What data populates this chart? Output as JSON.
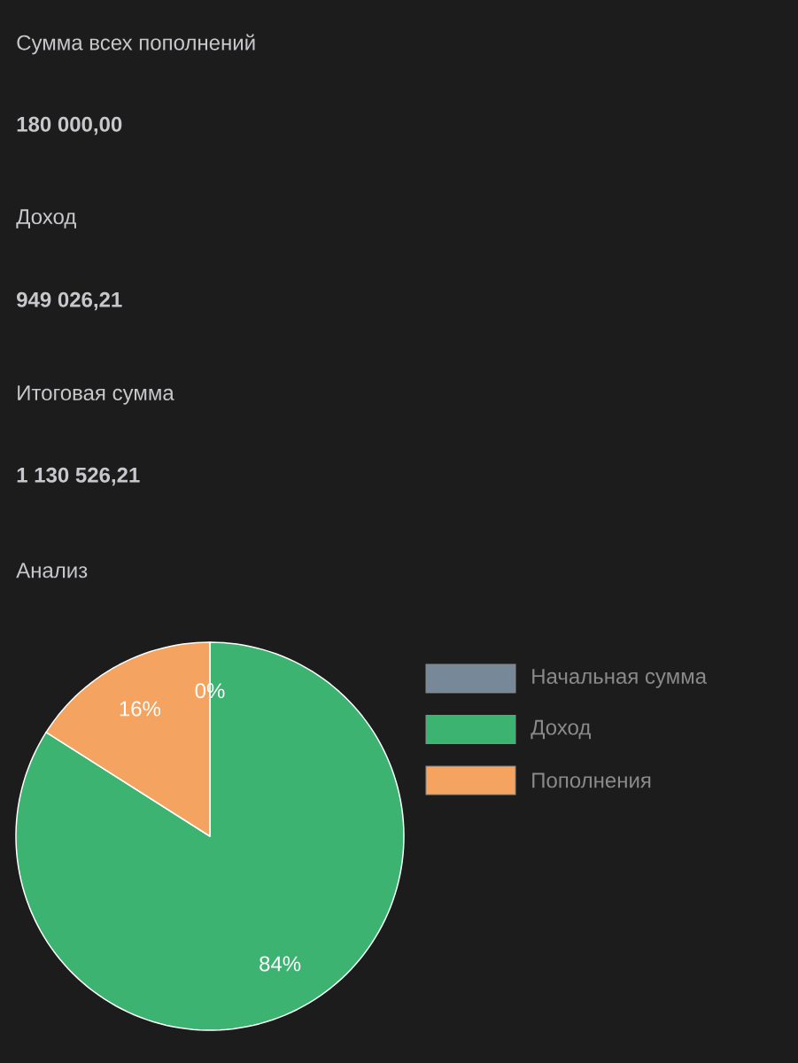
{
  "chart_data": {
    "type": "pie",
    "title": "Анализ",
    "annotations": [
      "Сумма всех пополнений",
      "**180 000,00**",
      "Доход",
      "**949 026,21**",
      "Итоговая сумма",
      "**1 130 526,21**"
    ],
    "categories": [
      "Начальная сумма",
      "Доход",
      "Пополнения"
    ],
    "values": [
      0,
      84,
      16
    ],
    "value_labels": [
      "0%",
      "84%",
      "16%"
    ],
    "colors": [
      "#778899",
      "#3cb371",
      "#f4a460"
    ],
    "legend": "right"
  }
}
